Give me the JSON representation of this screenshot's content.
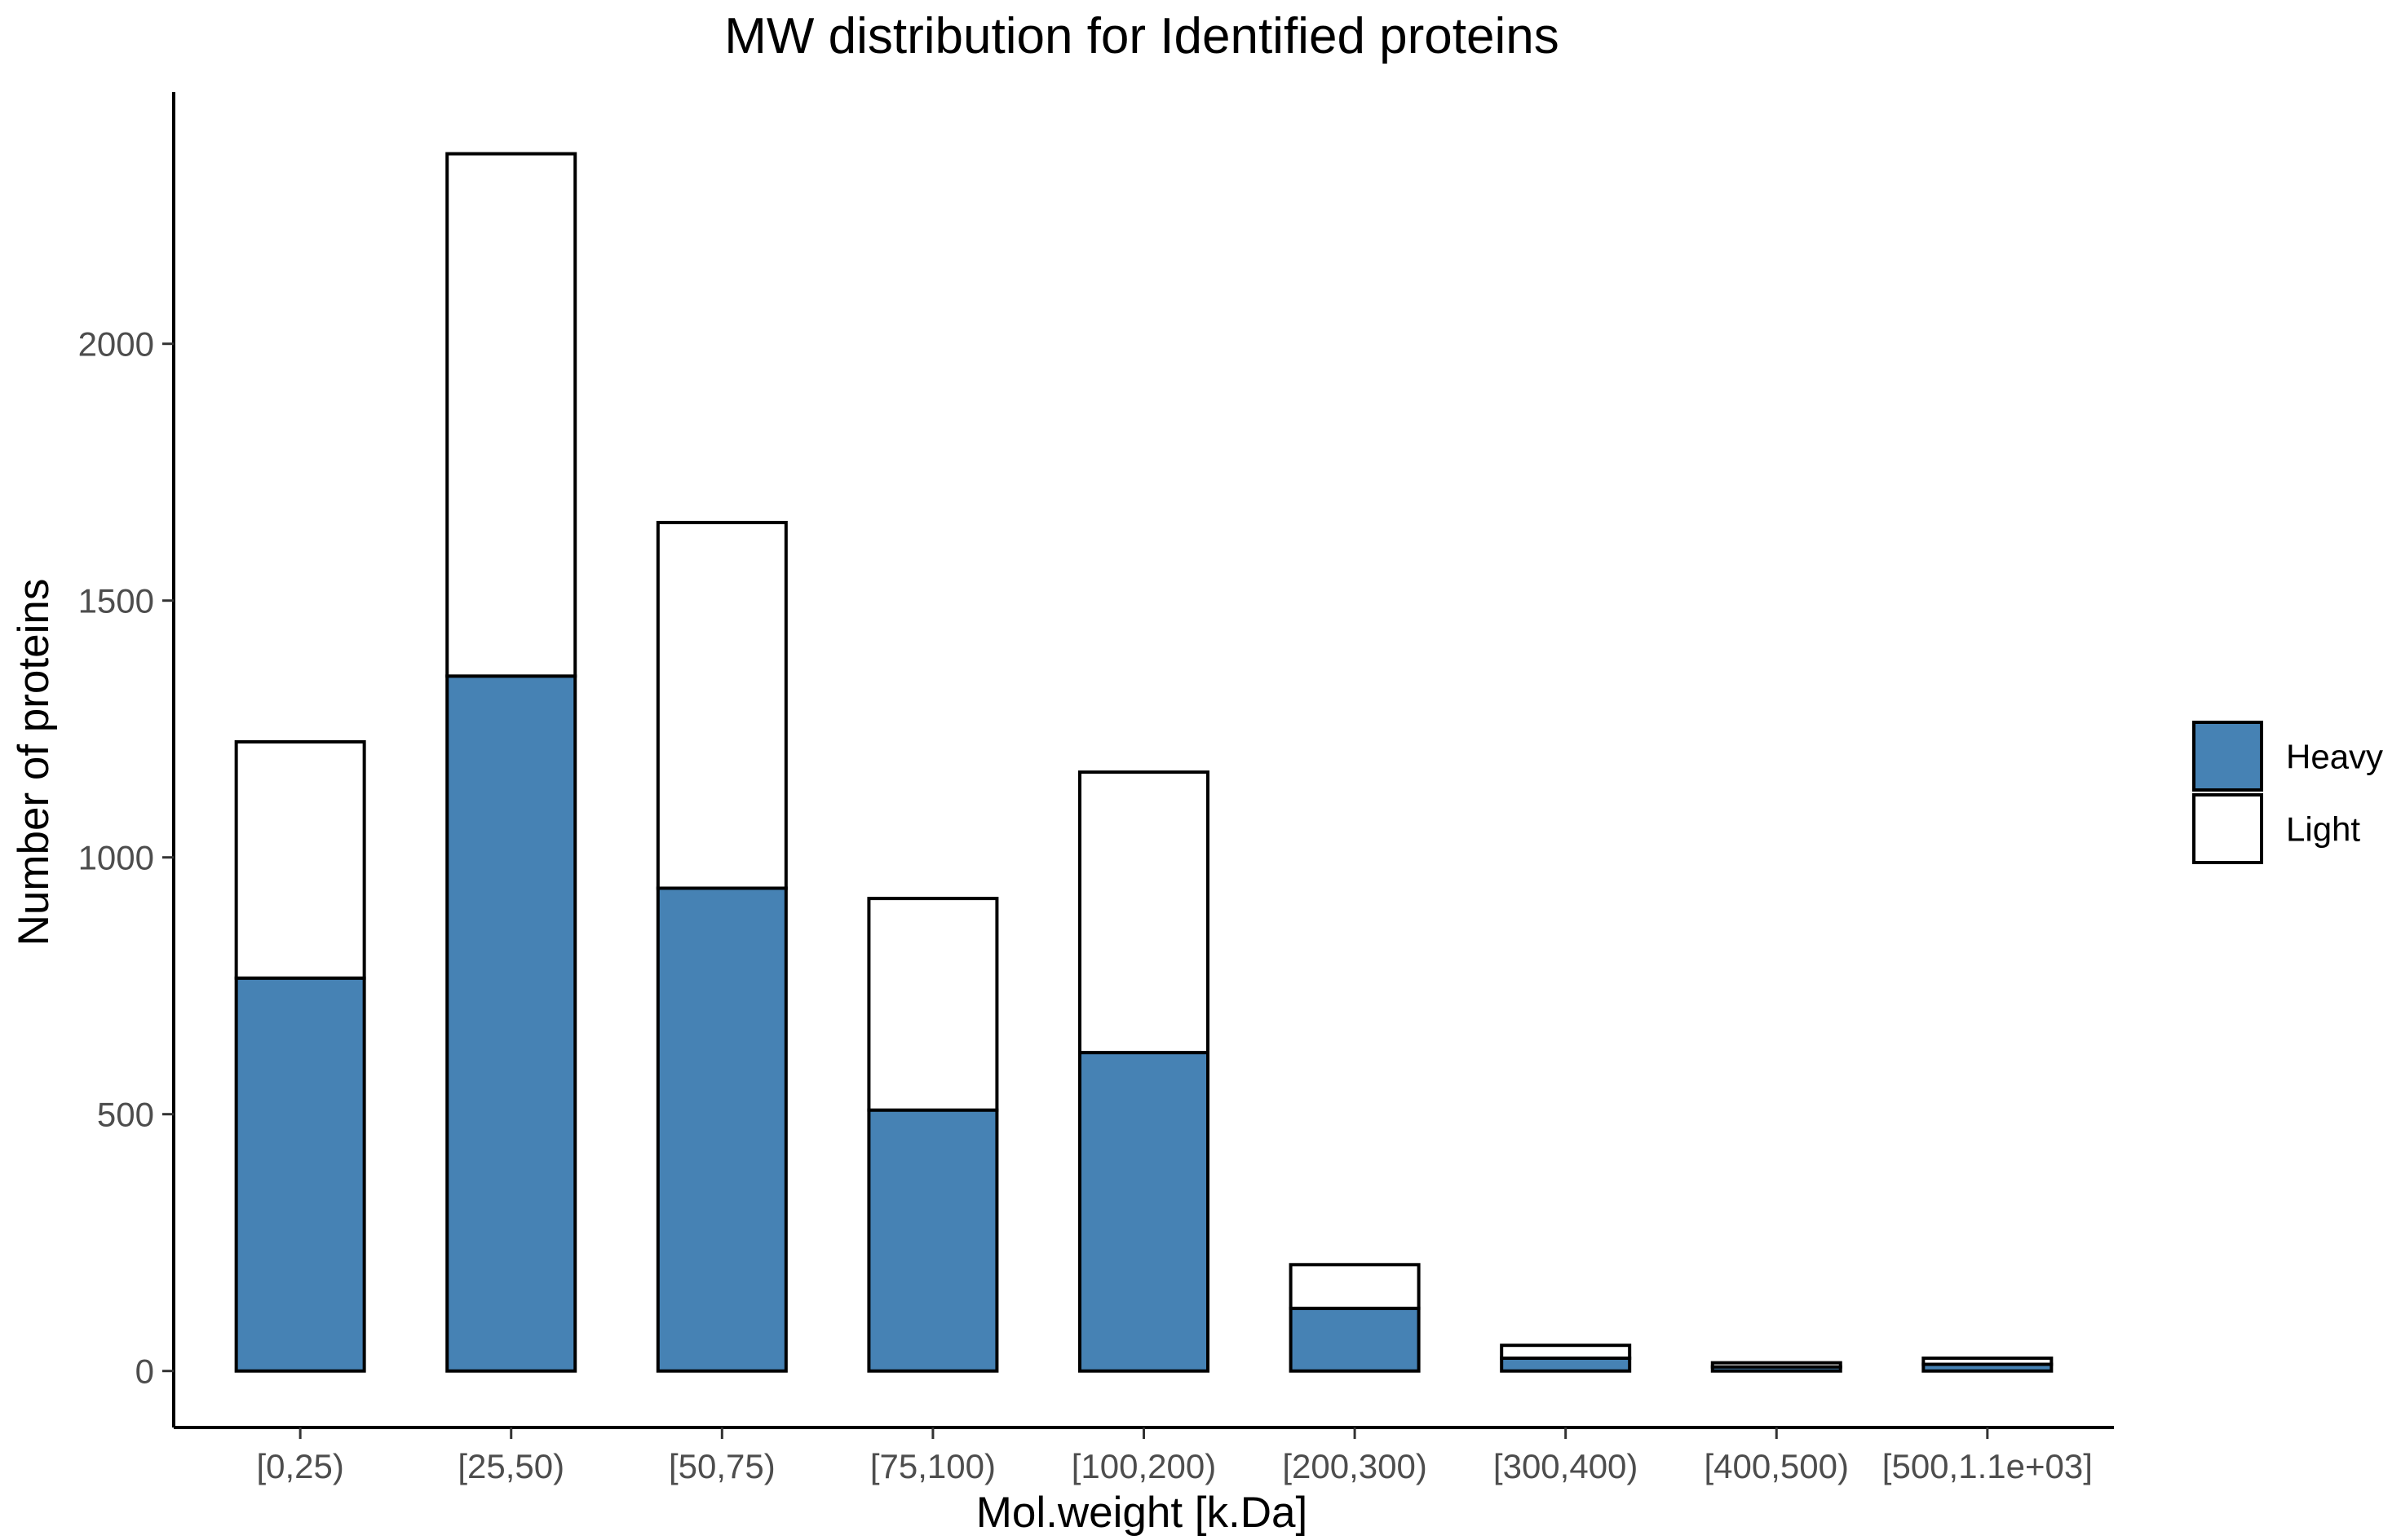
{
  "chart_data": {
    "type": "bar",
    "stacked": true,
    "title": "MW distribution for Identified proteins",
    "xlabel": "Mol.weight [k.Da]",
    "ylabel": "Number of proteins",
    "categories": [
      "[0,25)",
      "[25,50)",
      "[50,75)",
      "[75,100)",
      "[100,200)",
      "[200,300)",
      "[300,400)",
      "[400,500)",
      "[500,1.1e+03]"
    ],
    "series": [
      {
        "name": "Heavy",
        "color": "#4682b4",
        "values": [
          765,
          1353,
          940,
          508,
          620,
          122,
          25,
          8,
          13
        ]
      },
      {
        "name": "Light",
        "color": "#ffffff",
        "values": [
          460,
          1017,
          712,
          412,
          546,
          85,
          25,
          8,
          12
        ]
      }
    ],
    "yticks": [
      0,
      500,
      1000,
      1500,
      2000
    ],
    "ylim": [
      -110,
      2490
    ],
    "grid": false,
    "legend_position": "right"
  }
}
